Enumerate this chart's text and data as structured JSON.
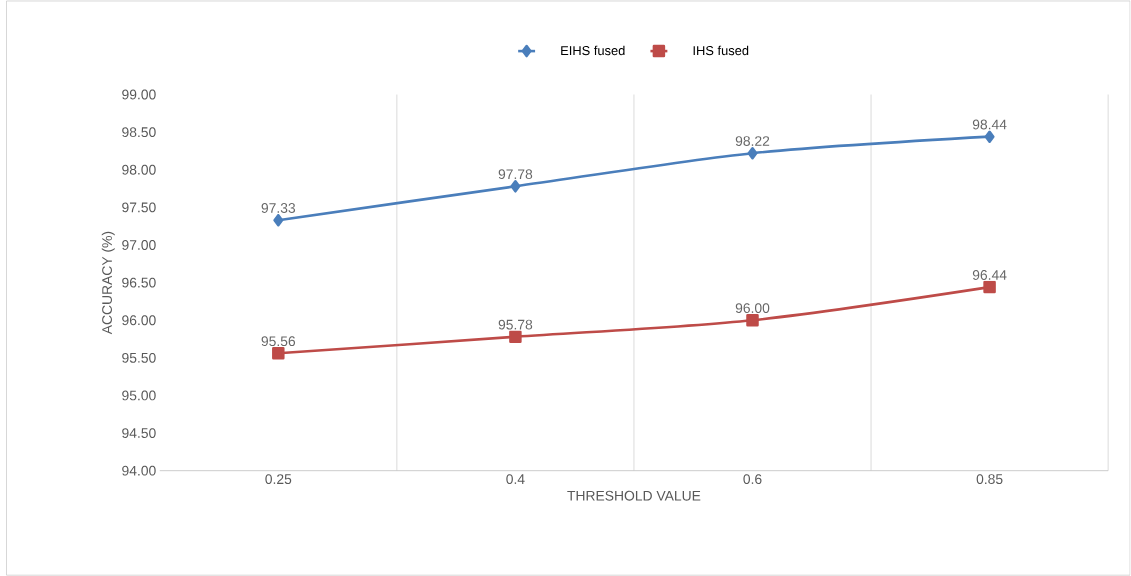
{
  "chart_data": {
    "type": "line",
    "xlabel": "THRESHOLD VALUE",
    "ylabel": "ACCURACY (%)",
    "categories": [
      "0.25",
      "0.4",
      "0.6",
      "0.85"
    ],
    "series": [
      {
        "name": "EIHS fused",
        "color": "#4a7ebb",
        "marker": "diamond",
        "values": [
          97.33,
          97.78,
          98.22,
          98.44
        ],
        "value_labels": [
          "97.33",
          "97.78",
          "98.22",
          "98.44"
        ]
      },
      {
        "name": "IHS fused",
        "color": "#be4b48",
        "marker": "square",
        "values": [
          95.56,
          95.78,
          96.0,
          96.44
        ],
        "value_labels": [
          "95.56",
          "95.78",
          "96.00",
          "96.44"
        ]
      }
    ],
    "ylim": [
      94,
      99
    ],
    "yticks": [
      {
        "value": 94,
        "label": "94.00"
      },
      {
        "value": 94.5,
        "label": "94.50"
      },
      {
        "value": 95,
        "label": "95.00"
      },
      {
        "value": 95.5,
        "label": "95.50"
      },
      {
        "value": 96,
        "label": "96.00"
      },
      {
        "value": 96.5,
        "label": "96.50"
      },
      {
        "value": 97,
        "label": "97.00"
      },
      {
        "value": 97.5,
        "label": "97.50"
      },
      {
        "value": 98,
        "label": "98.00"
      },
      {
        "value": 98.5,
        "label": "98.50"
      },
      {
        "value": 99,
        "label": "99.00"
      }
    ],
    "grid": "x",
    "legend": "top",
    "line_style": "solid"
  }
}
